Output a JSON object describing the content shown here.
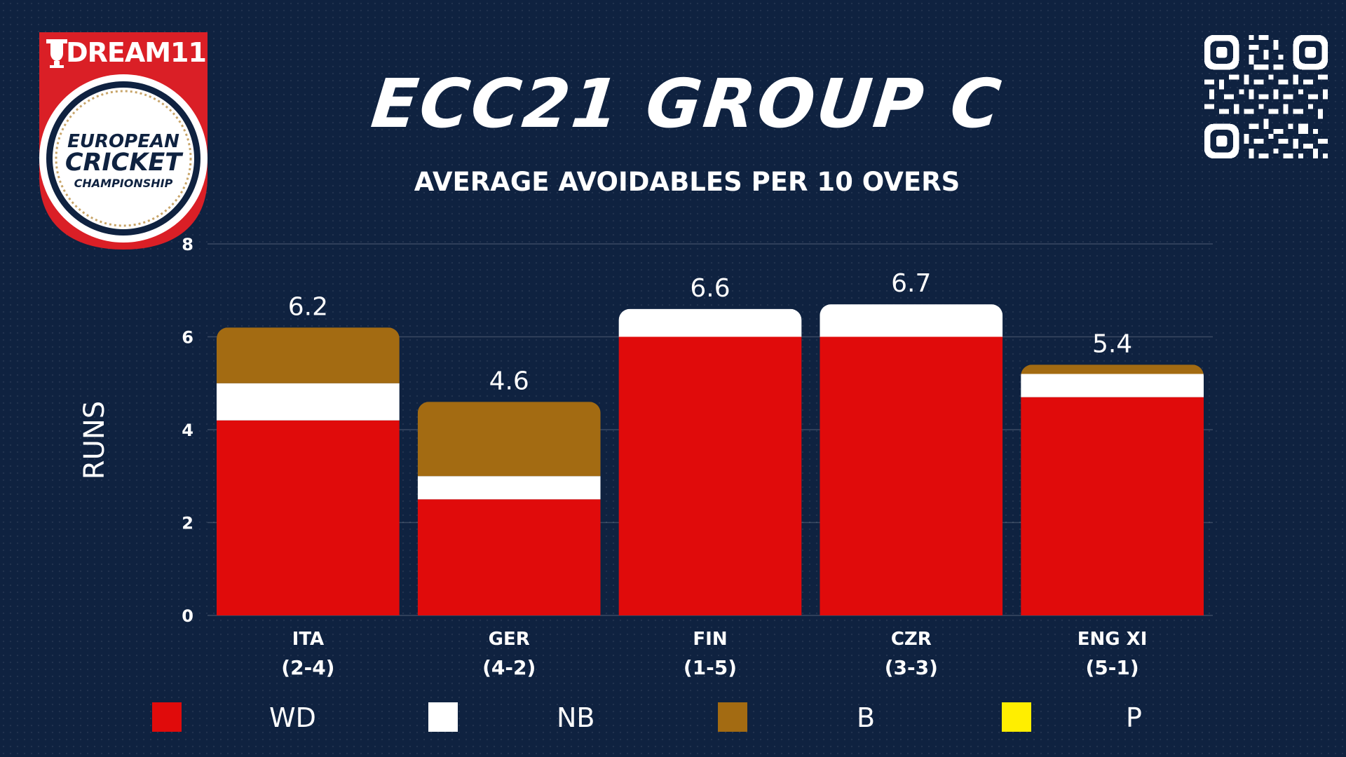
{
  "branding": {
    "sponsor": "DREAM11",
    "logo_lines": [
      "EUROPEAN",
      "CRICKET",
      "CHAMPIONSHIP"
    ]
  },
  "header": {
    "title": "ECC21 GROUP C",
    "subtitle": "AVERAGE AVOIDABLES PER 10 OVERS"
  },
  "colors": {
    "background": "#0f2240",
    "WD": "#e00b0b",
    "NB": "#ffffff",
    "B": "#a36b12",
    "P": "#ffee00",
    "badge": "#da1f26"
  },
  "icons": {
    "logo": "european-cricket-championship-logo",
    "qr": "qr-code"
  },
  "chart_data": {
    "type": "bar",
    "stacked": true,
    "categories": [
      "ITA",
      "GER",
      "FIN",
      "CZR",
      "ENG XI"
    ],
    "records": [
      "(2-4)",
      "(4-2)",
      "(1-5)",
      "(3-3)",
      "(5-1)"
    ],
    "series": [
      {
        "name": "WD",
        "color": "#e00b0b",
        "values": [
          4.2,
          2.5,
          6.0,
          6.0,
          4.7
        ]
      },
      {
        "name": "NB",
        "color": "#ffffff",
        "values": [
          0.8,
          0.5,
          0.6,
          0.7,
          0.5
        ]
      },
      {
        "name": "B",
        "color": "#a36b12",
        "values": [
          1.2,
          1.6,
          0.0,
          0.0,
          0.2
        ]
      },
      {
        "name": "P",
        "color": "#ffee00",
        "values": [
          0,
          0,
          0,
          0,
          0
        ]
      }
    ],
    "totals": [
      "6.2",
      "4.6",
      "6.6",
      "6.7",
      "5.4"
    ],
    "ylabel": "RUNS",
    "ylim": [
      0,
      8
    ],
    "yticks": [
      0,
      2,
      4,
      6,
      8
    ],
    "grid": true,
    "legend_position": "bottom"
  }
}
